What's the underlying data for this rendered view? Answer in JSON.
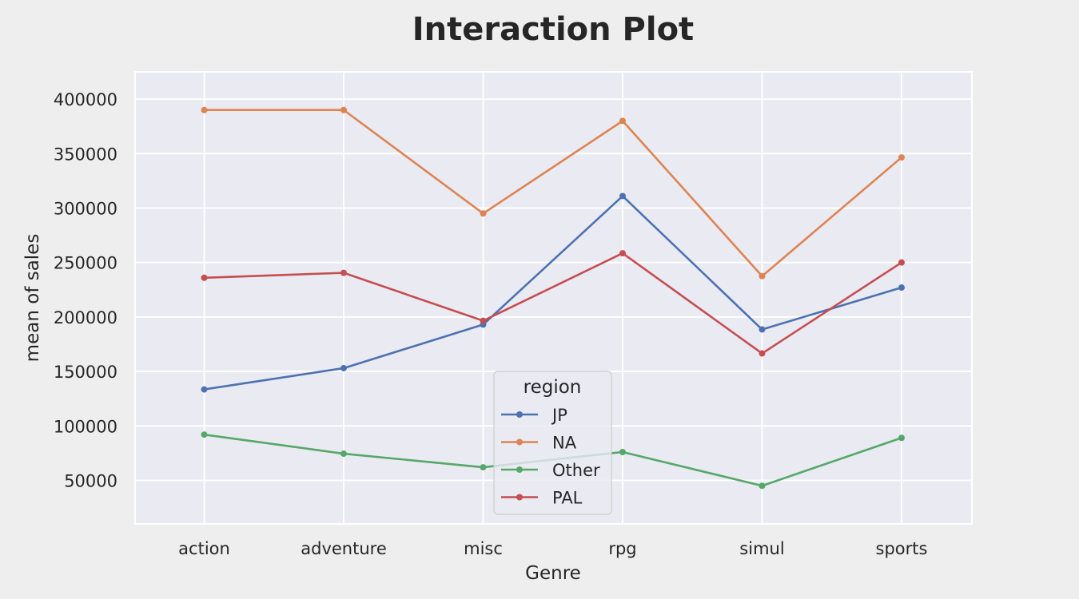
{
  "chart_data": {
    "type": "line",
    "title": "Interaction Plot",
    "xlabel": "Genre",
    "ylabel": "mean of sales",
    "categories": [
      "action",
      "adventure",
      "misc",
      "rpg",
      "simul",
      "sports"
    ],
    "ylim": [
      10000,
      425000
    ],
    "yticks": [
      50000,
      100000,
      150000,
      200000,
      250000,
      300000,
      350000,
      400000
    ],
    "ytick_labels": [
      "50000",
      "100000",
      "150000",
      "200000",
      "250000",
      "300000",
      "350000",
      "400000"
    ],
    "grid": true,
    "legend": {
      "title": "region",
      "placement": "lower-center"
    },
    "series": [
      {
        "name": "JP",
        "color": "#4c72b0",
        "values": [
          133500,
          153000,
          193000,
          311000,
          188500,
          227000
        ]
      },
      {
        "name": "NA",
        "color": "#dd8452",
        "values": [
          390000,
          390000,
          295000,
          380000,
          237500,
          346500
        ]
      },
      {
        "name": "Other",
        "color": "#55a868",
        "values": [
          92000,
          74500,
          62000,
          76000,
          45000,
          89000
        ]
      },
      {
        "name": "PAL",
        "color": "#c44e52",
        "values": [
          236000,
          240500,
          196500,
          258500,
          166500,
          250000
        ]
      }
    ]
  }
}
